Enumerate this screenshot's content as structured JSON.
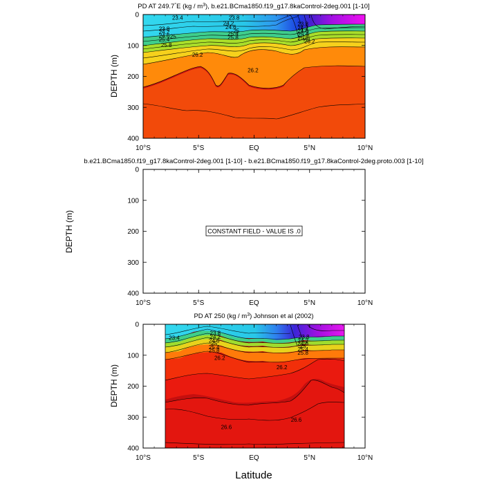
{
  "figure": {
    "xlabel": "Latitude",
    "ylabel": "DEPTH (m)"
  },
  "chart_data": [
    {
      "type": "contour",
      "title": "PD AT 249.7°E (kg / m³), b.e21.BCma1850.f19_g17.8kaControl-2deg.001 [1-10]",
      "title_parts": [
        "PD AT 249.7",
        "°",
        "E (kg / m",
        "3",
        "), b.e21.BCma1850.f19_g17.8kaControl-2deg.001 [1-10]"
      ],
      "x_ticks": [
        "10°S",
        "5°S",
        "EQ",
        "5°N",
        "10°N"
      ],
      "x_range": [
        -10,
        10
      ],
      "y_ticks": [
        "0",
        "100",
        "200",
        "300",
        "400"
      ],
      "y_range": [
        0,
        400
      ],
      "data_extent": [
        -10,
        10
      ],
      "contour_labels": [
        {
          "text": "23.4",
          "lat": -6.9,
          "depth": 10
        },
        {
          "text": "23.8",
          "lat": -1.8,
          "depth": 10
        },
        {
          "text": "23.8",
          "lat": -8.1,
          "depth": 46
        },
        {
          "text": "24.2",
          "lat": -8.1,
          "depth": 56
        },
        {
          "text": "24.6",
          "lat": -8.1,
          "depth": 68
        },
        {
          "text": "25",
          "lat": -7.3,
          "depth": 70
        },
        {
          "text": "25.4",
          "lat": -8.1,
          "depth": 80
        },
        {
          "text": "25.8",
          "lat": -7.9,
          "depth": 98
        },
        {
          "text": "26.2",
          "lat": -5.1,
          "depth": 130
        },
        {
          "text": "24.2",
          "lat": -2.3,
          "depth": 28
        },
        {
          "text": "24.6",
          "lat": -2.1,
          "depth": 40
        },
        {
          "text": "25",
          "lat": -1.6,
          "depth": 52
        },
        {
          "text": "25.4",
          "lat": -1.9,
          "depth": 62
        },
        {
          "text": "25.8",
          "lat": -1.9,
          "depth": 74
        },
        {
          "text": "26.2",
          "lat": -0.1,
          "depth": 180
        },
        {
          "text": "26.2",
          "lat": 5.0,
          "depth": 86
        },
        {
          "text": "25.4",
          "lat": 4.4,
          "depth": 64
        },
        {
          "text": "25.8",
          "lat": 4.4,
          "depth": 76
        },
        {
          "text": "23.8",
          "lat": 4.4,
          "depth": 30
        },
        {
          "text": "24.2",
          "lat": 4.4,
          "depth": 42
        },
        {
          "text": "24.6",
          "lat": 4.4,
          "depth": 52
        }
      ]
    },
    {
      "type": "contour",
      "title": "b.e21.BCma1850.f19_g17.8kaControl-2deg.001 [1-10] - b.e21.BCma1850.f19_g17.8kaControl-2deg.proto.003 [1-10]",
      "x_ticks": [
        "10°S",
        "5°S",
        "EQ",
        "5°N",
        "10°N"
      ],
      "x_range": [
        -10,
        10
      ],
      "y_ticks": [
        "0",
        "100",
        "200",
        "300",
        "400"
      ],
      "y_range": [
        0,
        400
      ],
      "message": "CONSTANT FIELD - VALUE IS .0"
    },
    {
      "type": "contour",
      "title": "PD AT 250 (kg / m³) Johnson et al (2002)",
      "title_parts": [
        "PD AT 250 (kg / m",
        "3",
        ") Johnson et al (2002)"
      ],
      "x_ticks": [
        "10°S",
        "5°S",
        "EQ",
        "5°N",
        "10°N"
      ],
      "x_range": [
        -10,
        10
      ],
      "y_ticks": [
        "0",
        "100",
        "200",
        "300",
        "400"
      ],
      "y_range": [
        0,
        400
      ],
      "data_extent": [
        -8,
        8
      ],
      "contour_labels": [
        {
          "text": "23.4",
          "lat": -7.2,
          "depth": 44
        },
        {
          "text": "23.8",
          "lat": -3.5,
          "depth": 28
        },
        {
          "text": "24.2",
          "lat": -3.5,
          "depth": 40
        },
        {
          "text": "24.6",
          "lat": -3.6,
          "depth": 52
        },
        {
          "text": "25",
          "lat": -3.6,
          "depth": 62
        },
        {
          "text": "25.4",
          "lat": -3.6,
          "depth": 74
        },
        {
          "text": "25.8",
          "lat": -3.6,
          "depth": 84
        },
        {
          "text": "26.2",
          "lat": -3.1,
          "depth": 108
        },
        {
          "text": "26.2",
          "lat": 2.5,
          "depth": 138
        },
        {
          "text": "26.6",
          "lat": -2.5,
          "depth": 332
        },
        {
          "text": "26.6",
          "lat": 3.8,
          "depth": 308
        },
        {
          "text": "23.8",
          "lat": 4.5,
          "depth": 40
        },
        {
          "text": "24.2",
          "lat": 4.4,
          "depth": 52
        },
        {
          "text": "24.6",
          "lat": 4.4,
          "depth": 62
        },
        {
          "text": "25",
          "lat": 4.4,
          "depth": 70
        },
        {
          "text": "25.4",
          "lat": 4.4,
          "depth": 80
        },
        {
          "text": "25.8",
          "lat": 4.4,
          "depth": 92
        }
      ]
    }
  ]
}
